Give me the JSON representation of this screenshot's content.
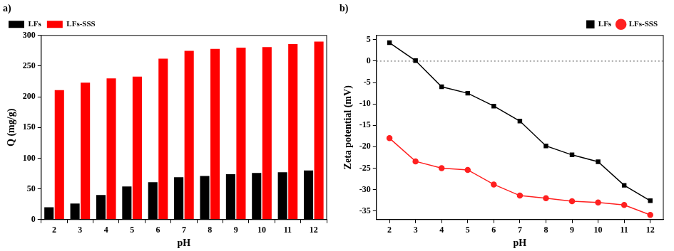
{
  "chart_data": [
    {
      "type": "bar",
      "title": "a)",
      "x_label": "pH",
      "y_label": "Q (mg/g)",
      "categories": [
        "2",
        "3",
        "4",
        "5",
        "6",
        "7",
        "8",
        "9",
        "10",
        "11",
        "12"
      ],
      "series": [
        {
          "name": "LFs",
          "color": "#000000",
          "values": [
            20,
            26,
            40,
            54,
            61,
            69,
            71,
            74,
            76,
            77,
            80
          ]
        },
        {
          "name": "LFs-SSS",
          "color": "#ff0000",
          "values": [
            211,
            223,
            230,
            233,
            262,
            275,
            278,
            280,
            281,
            286,
            290
          ]
        }
      ],
      "ylim": [
        0,
        300
      ],
      "yticks": [
        0,
        50,
        100,
        150,
        200,
        250,
        300
      ],
      "grid": false,
      "legend": "upper left"
    },
    {
      "type": "line",
      "title": "b)",
      "x_label": "pH",
      "y_label": "Zeta potential (mV)",
      "x": [
        2,
        3,
        4,
        5,
        6,
        7,
        8,
        9,
        10,
        11,
        12
      ],
      "series": [
        {
          "name": "LFs",
          "color": "#000000",
          "marker": "square",
          "line_style": "solid",
          "values": [
            4.3,
            0.1,
            -6,
            -7.5,
            -10.5,
            -14,
            -19.8,
            -21.9,
            -23.5,
            -29,
            -32.6
          ]
        },
        {
          "name": "LFs-SSS",
          "color": "#ff2020",
          "marker": "circle",
          "line_style": "solid",
          "values": [
            -18,
            -23.4,
            -25,
            -25.4,
            -28.8,
            -31.4,
            -32,
            -32.7,
            -33,
            -33.6,
            -35.9
          ]
        }
      ],
      "xlim": [
        1.5,
        12.5
      ],
      "xticks": [
        2,
        3,
        4,
        5,
        6,
        7,
        8,
        9,
        10,
        11,
        12
      ],
      "ylim": [
        -37,
        6
      ],
      "yticks": [
        -35,
        -30,
        -25,
        -20,
        -15,
        -10,
        -5,
        0,
        5
      ],
      "reference_lines": [
        0
      ],
      "grid": false,
      "legend": "upper right"
    }
  ]
}
